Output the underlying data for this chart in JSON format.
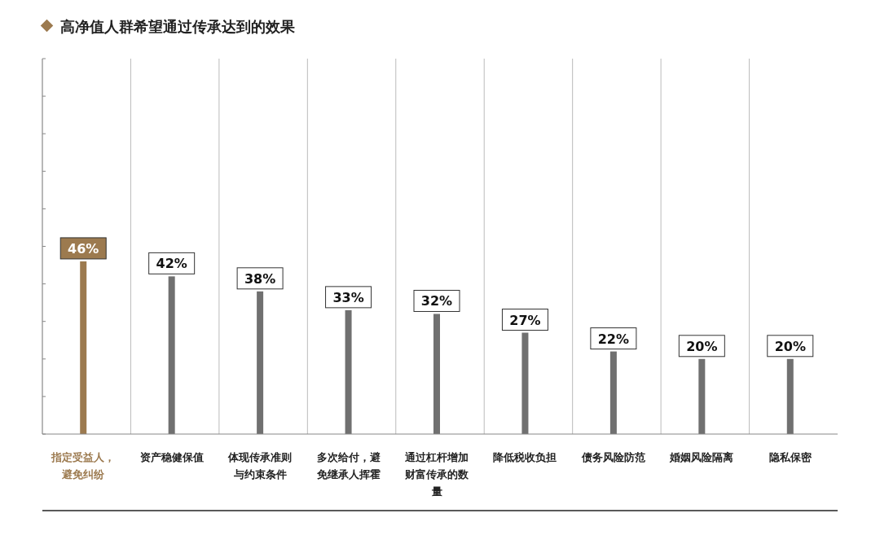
{
  "chart_data": {
    "type": "bar",
    "title": "高净值人群希望通过传承达到的效果",
    "categories": [
      "指定受益人，避免纠纷",
      "资产稳健保值",
      "体现传承准则与约束条件",
      "多次给付，避免继承人挥霍",
      "通过杠杆增加财富传承的数量",
      "降低税收负担",
      "债务风险防范",
      "婚姻风险隔离",
      "隐私保密"
    ],
    "colors": [
      "#9c7a4f",
      "#707070",
      "#707070",
      "#707070",
      "#707070",
      "#707070",
      "#707070",
      "#707070",
      "#707070"
    ],
    "values": [
      46,
      42,
      38,
      33,
      32,
      27,
      22,
      20,
      20
    ],
    "value_labels": [
      "46%",
      "42%",
      "38%",
      "33%",
      "32%",
      "27%",
      "22%",
      "20%",
      "20%"
    ],
    "tick_labels": "x",
    "grid": false
  }
}
